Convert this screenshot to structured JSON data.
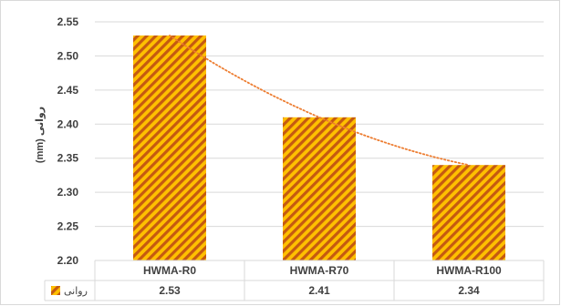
{
  "chart_data": {
    "type": "bar",
    "categories": [
      "HWMA-R0",
      "HWMA-R70",
      "HWMA-R100"
    ],
    "series": [
      {
        "name": "روانی",
        "values": [
          2.53,
          2.41,
          2.34
        ],
        "value_labels": [
          "2.53",
          "2.41",
          "2.34"
        ]
      }
    ],
    "trendline": {
      "type": "polynomial",
      "style": "dotted",
      "color": "#ED7D31"
    },
    "ylabel": "(mm) روانی",
    "ylim": [
      2.2,
      2.55
    ],
    "yticks": [
      "2.20",
      "2.25",
      "2.30",
      "2.35",
      "2.40",
      "2.45",
      "2.50",
      "2.55"
    ],
    "grid": true,
    "legend": "data-table",
    "colors": {
      "bar_fill": "#FFC000",
      "bar_hatch": "#C55A11",
      "trend": "#ED7D31",
      "grid": "#D9D9D9",
      "axis_text": "#404040"
    }
  }
}
